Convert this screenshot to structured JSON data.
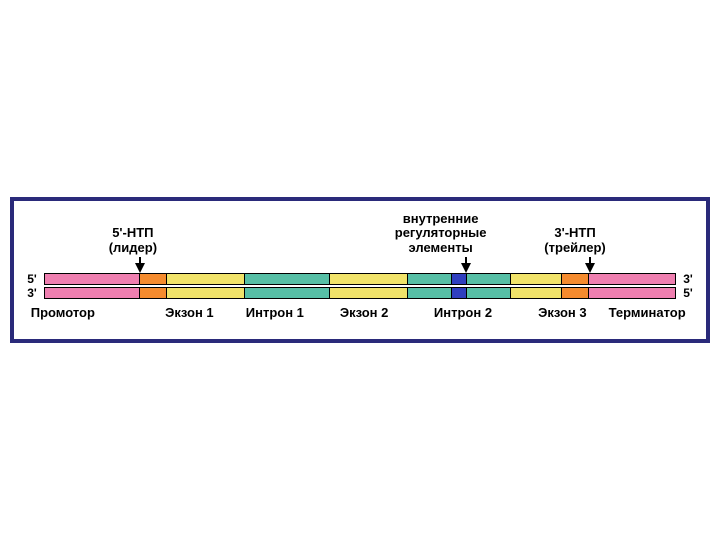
{
  "diagram": {
    "type": "gene-structure",
    "border_color": "#2a2a7a",
    "background": "#ffffff",
    "colors": {
      "promoter_terminator": "#ef7fb0",
      "utr": "#f58b2e",
      "exon": "#f1e36a",
      "intron": "#57bfa6",
      "regulatory": "#2f3fbf",
      "stroke": "#000000"
    },
    "end_labels": {
      "left_top": "5'",
      "left_bottom": "3'",
      "right_top": "3'",
      "right_bottom": "5'"
    },
    "callouts": [
      {
        "id": "utr5",
        "line1": "5'-НТП",
        "line2": "(лидер)",
        "left_pct": 16.2,
        "arrow_pct": 17.2
      },
      {
        "id": "reg",
        "line1": "внутренние",
        "line2": "регуляторные",
        "line3": "элементы",
        "left_pct": 62.0,
        "arrow_pct": 65.8
      },
      {
        "id": "utr3",
        "line1": "3'-НТП",
        "line2": "(трейлер)",
        "left_pct": 82.0,
        "arrow_pct": 84.2
      }
    ],
    "segments": [
      {
        "name": "promoter",
        "color_key": "promoter_terminator",
        "width_pct": 15.0
      },
      {
        "name": "utr5",
        "color_key": "utr",
        "width_pct": 4.4
      },
      {
        "name": "exon1",
        "color_key": "exon",
        "width_pct": 12.4
      },
      {
        "name": "intron1",
        "color_key": "intron",
        "width_pct": 13.4
      },
      {
        "name": "exon2",
        "color_key": "exon",
        "width_pct": 12.4
      },
      {
        "name": "intron2a",
        "color_key": "intron",
        "width_pct": 7.0
      },
      {
        "name": "reg",
        "color_key": "regulatory",
        "width_pct": 2.4
      },
      {
        "name": "intron2b",
        "color_key": "intron",
        "width_pct": 7.0
      },
      {
        "name": "exon3",
        "color_key": "exon",
        "width_pct": 8.0
      },
      {
        "name": "utr3",
        "color_key": "utr",
        "width_pct": 4.4
      },
      {
        "name": "terminator",
        "color_key": "promoter_terminator",
        "width_pct": 13.6
      }
    ],
    "bottom_labels": [
      {
        "text": "Промотор",
        "left_pct": 1.0
      },
      {
        "text": "Экзон 1",
        "left_pct": 21.0
      },
      {
        "text": "Интрон 1",
        "left_pct": 33.0
      },
      {
        "text": "Экзон 2",
        "left_pct": 47.0
      },
      {
        "text": "Интрон 2",
        "left_pct": 61.0
      },
      {
        "text": "Экзон 3",
        "left_pct": 76.5
      },
      {
        "text": "Терминатор",
        "left_pct": 87.0
      }
    ]
  }
}
